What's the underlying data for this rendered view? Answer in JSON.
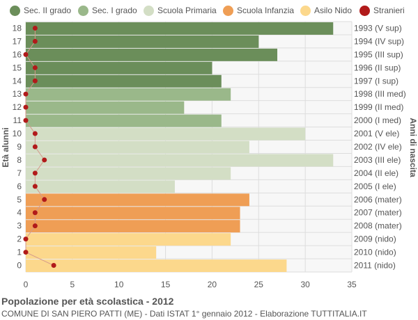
{
  "chart_data": {
    "type": "bar",
    "orientation": "horizontal",
    "ylabel_left": "Età alunni",
    "ylabel_right": "Anni di nascita",
    "xlim": [
      0,
      35
    ],
    "xticks": [
      0,
      5,
      10,
      15,
      20,
      25,
      30,
      35
    ],
    "grid": true,
    "legend_position": "top",
    "legend": [
      {
        "name": "Sec. II grado",
        "color": "#6b8e5a"
      },
      {
        "name": "Sec. I grado",
        "color": "#9ab88a"
      },
      {
        "name": "Scuola Primaria",
        "color": "#d3dec5"
      },
      {
        "name": "Scuola Infanzia",
        "color": "#ef9e55"
      },
      {
        "name": "Asilo Nido",
        "color": "#fcd88c"
      },
      {
        "name": "Stranieri",
        "color": "#b11a1a"
      }
    ],
    "rows": [
      {
        "age": "18",
        "birth": "1993 (V sup)",
        "value": 33,
        "stranieri": 1,
        "group": 0
      },
      {
        "age": "17",
        "birth": "1994 (IV sup)",
        "value": 25,
        "stranieri": 1,
        "group": 0
      },
      {
        "age": "16",
        "birth": "1995 (III sup)",
        "value": 27,
        "stranieri": 0,
        "group": 0
      },
      {
        "age": "15",
        "birth": "1996 (II sup)",
        "value": 20,
        "stranieri": 1,
        "group": 0
      },
      {
        "age": "14",
        "birth": "1997 (I sup)",
        "value": 21,
        "stranieri": 1,
        "group": 0
      },
      {
        "age": "13",
        "birth": "1998 (III med)",
        "value": 22,
        "stranieri": 0,
        "group": 1
      },
      {
        "age": "12",
        "birth": "1999 (II med)",
        "value": 17,
        "stranieri": 0,
        "group": 1
      },
      {
        "age": "11",
        "birth": "2000 (I med)",
        "value": 21,
        "stranieri": 0,
        "group": 1
      },
      {
        "age": "10",
        "birth": "2001 (V ele)",
        "value": 30,
        "stranieri": 1,
        "group": 2
      },
      {
        "age": "9",
        "birth": "2002 (IV ele)",
        "value": 24,
        "stranieri": 1,
        "group": 2
      },
      {
        "age": "8",
        "birth": "2003 (III ele)",
        "value": 33,
        "stranieri": 2,
        "group": 2
      },
      {
        "age": "7",
        "birth": "2004 (II ele)",
        "value": 22,
        "stranieri": 1,
        "group": 2
      },
      {
        "age": "6",
        "birth": "2005 (I ele)",
        "value": 16,
        "stranieri": 1,
        "group": 2
      },
      {
        "age": "5",
        "birth": "2006 (mater)",
        "value": 24,
        "stranieri": 2,
        "group": 3
      },
      {
        "age": "4",
        "birth": "2007 (mater)",
        "value": 23,
        "stranieri": 1,
        "group": 3
      },
      {
        "age": "3",
        "birth": "2008 (mater)",
        "value": 23,
        "stranieri": 1,
        "group": 3
      },
      {
        "age": "2",
        "birth": "2009 (nido)",
        "value": 22,
        "stranieri": 0,
        "group": 4
      },
      {
        "age": "1",
        "birth": "2010 (nido)",
        "value": 14,
        "stranieri": 0,
        "group": 4
      },
      {
        "age": "0",
        "birth": "2011 (nido)",
        "value": 28,
        "stranieri": 3,
        "group": 4
      }
    ],
    "stranieri_color": "#b11a1a",
    "stranieri_line_color": "#d49a8c"
  },
  "footer": {
    "title": "Popolazione per età scolastica - 2012",
    "subtitle": "COMUNE DI SAN PIERO PATTI (ME) - Dati ISTAT 1° gennaio 2012 - Elaborazione TUTTITALIA.IT"
  }
}
